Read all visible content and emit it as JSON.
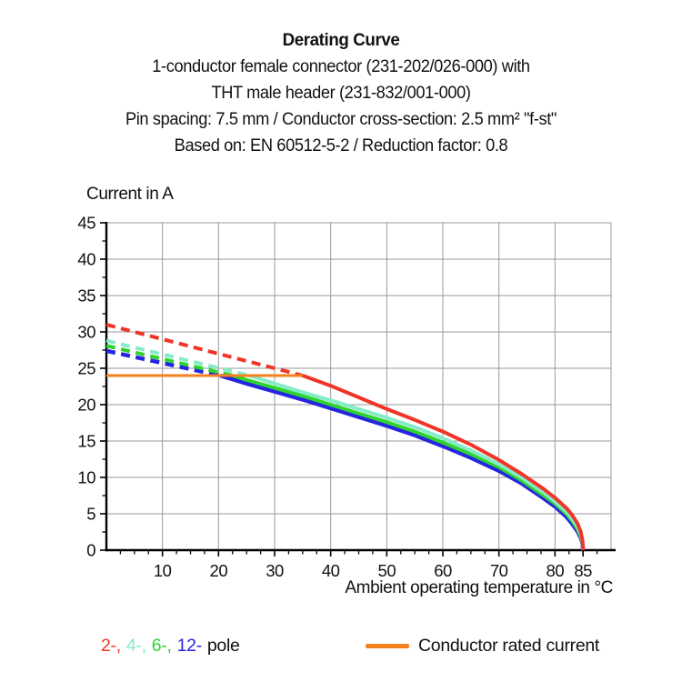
{
  "header": {
    "title": "Derating Curve",
    "subtitle_lines": [
      "1-conductor female connector (231-202/026-000) with",
      "THT male header (231-832/001-000)",
      "Pin spacing: 7.5 mm / Conductor cross-section: 2.5 mm² \"f-st\"",
      "Based on: EN 60512-5-2 / Reduction factor: 0.8"
    ]
  },
  "chart_data": {
    "type": "line",
    "title": "Derating Curve",
    "ylabel": "Current in A",
    "xlabel": "Ambient operating temperature in °C",
    "xlim": [
      0,
      90
    ],
    "ylim": [
      0,
      45
    ],
    "xticks": [
      10,
      20,
      30,
      40,
      50,
      60,
      70,
      80,
      85
    ],
    "yticks": [
      0,
      5,
      10,
      15,
      20,
      25,
      30,
      35,
      40,
      45
    ],
    "x_gridline_step": 10,
    "y_gridline_step": 5,
    "minor_tick_step": 2.5,
    "grid": true,
    "grid_color": "#9a9a9a",
    "axis_color": "#000000",
    "series": [
      {
        "name": "2-pole",
        "color": "#f03528",
        "width": 4,
        "zorder": 4,
        "segments": [
          {
            "style": "dashed",
            "points": [
              [
                0,
                31
              ],
              [
                35,
                24
              ]
            ]
          },
          {
            "style": "solid",
            "points": [
              [
                35,
                24
              ],
              [
                40,
                22.6
              ],
              [
                45,
                21
              ],
              [
                50,
                19.4
              ],
              [
                55,
                17.9
              ],
              [
                60,
                16.3
              ],
              [
                65,
                14.5
              ],
              [
                70,
                12.4
              ],
              [
                74,
                10.5
              ],
              [
                78,
                8.4
              ],
              [
                80,
                7.2
              ],
              [
                82,
                5.8
              ],
              [
                83,
                4.9
              ],
              [
                84,
                3.7
              ],
              [
                84.6,
                2.5
              ],
              [
                84.9,
                1.3
              ],
              [
                85,
                0
              ]
            ]
          }
        ]
      },
      {
        "name": "4-pole",
        "color": "#84ecc6",
        "width": 4,
        "zorder": 3,
        "segments": [
          {
            "style": "dashed",
            "points": [
              [
                0,
                28.8
              ],
              [
                25.5,
                24
              ]
            ]
          },
          {
            "style": "solid",
            "points": [
              [
                25.5,
                24
              ],
              [
                30,
                22.9
              ],
              [
                35,
                21.7
              ],
              [
                40,
                20.6
              ],
              [
                45,
                19.4
              ],
              [
                50,
                18.2
              ],
              [
                55,
                16.9
              ],
              [
                60,
                15.4
              ],
              [
                65,
                13.7
              ],
              [
                70,
                11.8
              ],
              [
                74,
                10
              ],
              [
                78,
                7.9
              ],
              [
                80,
                6.7
              ],
              [
                82,
                5.3
              ],
              [
                83,
                4.4
              ],
              [
                84,
                3.2
              ],
              [
                84.6,
                2.1
              ],
              [
                84.9,
                1.1
              ],
              [
                85,
                0
              ]
            ]
          }
        ]
      },
      {
        "name": "6-pole",
        "color": "#2ed32e",
        "width": 4,
        "zorder": 2,
        "segments": [
          {
            "style": "dashed",
            "points": [
              [
                0,
                28.1
              ],
              [
                22.5,
                24
              ]
            ]
          },
          {
            "style": "solid",
            "points": [
              [
                22.5,
                24
              ],
              [
                25,
                23.4
              ],
              [
                30,
                22.3
              ],
              [
                35,
                21.2
              ],
              [
                40,
                20
              ],
              [
                45,
                18.8
              ],
              [
                50,
                17.6
              ],
              [
                55,
                16.3
              ],
              [
                60,
                14.8
              ],
              [
                65,
                13.2
              ],
              [
                70,
                11.4
              ],
              [
                74,
                9.6
              ],
              [
                78,
                7.5
              ],
              [
                80,
                6.4
              ],
              [
                82,
                5
              ],
              [
                83,
                4.1
              ],
              [
                84,
                2.9
              ],
              [
                84.6,
                1.9
              ],
              [
                84.9,
                1
              ],
              [
                85,
                0
              ]
            ]
          }
        ]
      },
      {
        "name": "12-pole",
        "color": "#2525e0",
        "width": 4.5,
        "zorder": 1,
        "segments": [
          {
            "style": "dashed",
            "points": [
              [
                0,
                27.4
              ],
              [
                20.3,
                24
              ]
            ]
          },
          {
            "style": "solid",
            "points": [
              [
                20.3,
                24
              ],
              [
                25,
                22.9
              ],
              [
                30,
                21.8
              ],
              [
                35,
                20.7
              ],
              [
                40,
                19.5
              ],
              [
                45,
                18.3
              ],
              [
                50,
                17.1
              ],
              [
                55,
                15.8
              ],
              [
                60,
                14.3
              ],
              [
                65,
                12.7
              ],
              [
                70,
                10.9
              ],
              [
                74,
                9.2
              ],
              [
                78,
                7.1
              ],
              [
                80,
                6
              ],
              [
                82,
                4.6
              ],
              [
                83,
                3.7
              ],
              [
                84,
                2.6
              ],
              [
                84.6,
                1.7
              ],
              [
                84.9,
                0.9
              ],
              [
                85,
                0
              ]
            ]
          }
        ]
      },
      {
        "name": "Conductor rated current",
        "color": "#f5801f",
        "width": 3,
        "zorder": 5,
        "segments": [
          {
            "style": "solid",
            "points": [
              [
                0,
                24
              ],
              [
                35,
                24
              ]
            ]
          }
        ]
      }
    ]
  },
  "legend": {
    "pole_items": [
      {
        "label": "2-,",
        "color": "#f03528"
      },
      {
        "label": "4-,",
        "color": "#84ecc6"
      },
      {
        "label": "6-,",
        "color": "#2ed32e"
      },
      {
        "label": "12-",
        "color": "#2525e0"
      }
    ],
    "pole_suffix": "pole",
    "rated_label": "Conductor rated current",
    "rated_color": "#f5801f"
  }
}
